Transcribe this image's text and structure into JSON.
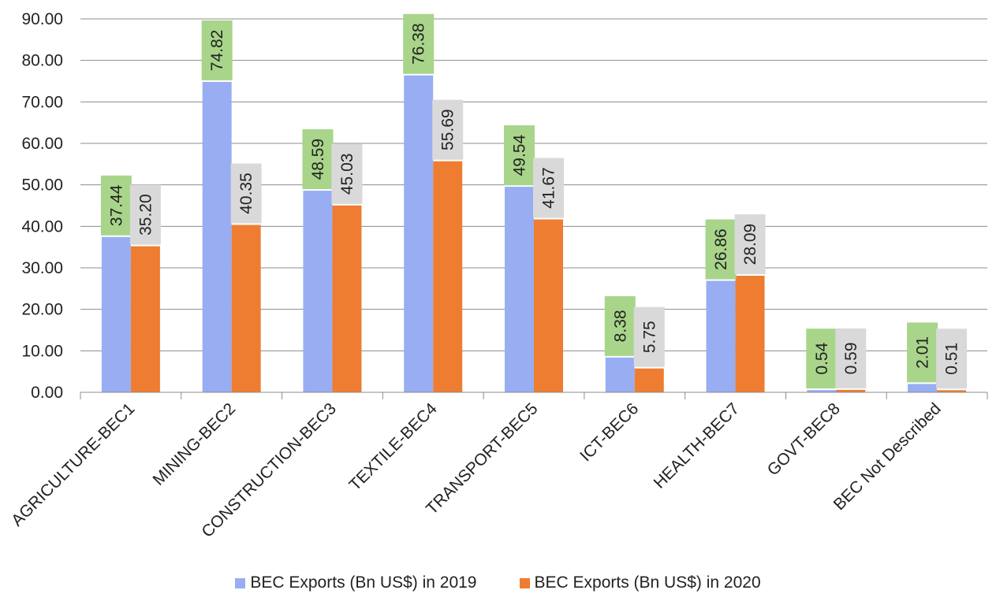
{
  "chart_data": {
    "type": "bar",
    "title": "",
    "xlabel": "",
    "ylabel": "",
    "ylim": [
      0,
      90
    ],
    "yticks": [
      "0.00",
      "10.00",
      "20.00",
      "30.00",
      "40.00",
      "50.00",
      "60.00",
      "70.00",
      "80.00",
      "90.00"
    ],
    "grid": true,
    "legend_position": "bottom",
    "categories": [
      "AGRICULTURE-BEC1",
      "MINING-BEC2",
      "CONSTRUCTION-BEC3",
      "TEXTILE-BEC4",
      "TRANSPORT-BEC5",
      "ICT-BEC6",
      "HEALTH-BEC7",
      "GOVT-BEC8",
      "BEC Not Described"
    ],
    "series": [
      {
        "name": "BEC Exports (Bn US$) in 2019",
        "color": "#98ADF2",
        "label_bg": "#A8D58A",
        "values": [
          37.44,
          74.82,
          48.59,
          76.38,
          49.54,
          8.38,
          26.86,
          0.54,
          2.01
        ],
        "labels": [
          "37.44",
          "74.82",
          "48.59",
          "76.38",
          "49.54",
          "8.38",
          "26.86",
          "0.54",
          "2.01"
        ]
      },
      {
        "name": "BEC Exports (Bn US$) in 2020",
        "color": "#EE7D31",
        "label_bg": "#D9D9D9",
        "values": [
          35.2,
          40.35,
          45.03,
          55.69,
          41.67,
          5.75,
          28.09,
          0.59,
          0.51
        ],
        "labels": [
          "35.20",
          "40.35",
          "45.03",
          "55.69",
          "41.67",
          "5.75",
          "28.09",
          "0.59",
          "0.51"
        ]
      }
    ]
  }
}
